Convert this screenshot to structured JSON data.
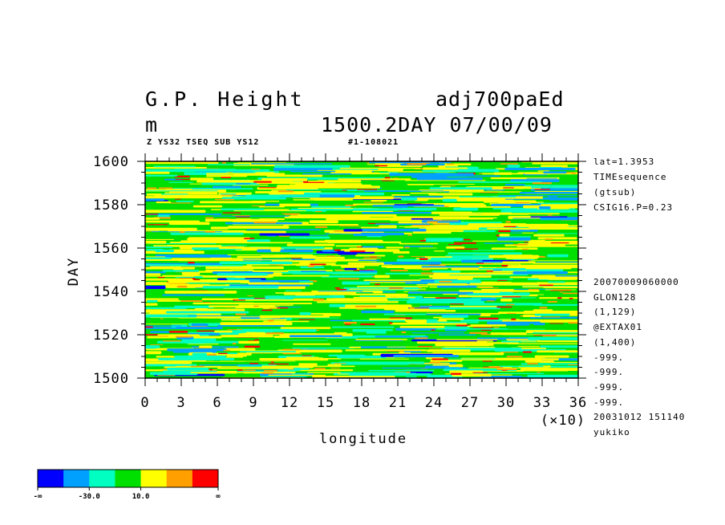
{
  "header": {
    "title_left_1": "G.P. Height",
    "title_right_1": "adj700paEd",
    "title_left_2": "m",
    "title_right_2": "1500.2DAY 07/00/09",
    "subtitle_left": "Z YS32 TSEQ SUB YS12",
    "subtitle_right": "#1-108021"
  },
  "side_info": {
    "top": [
      "lat=1.3953",
      "TIMEsequence",
      "(gtsub)",
      "CSIG16.P=0.23"
    ],
    "bottom": [
      "20070009060000",
      "GLON128",
      "(1,129)",
      "@EXTAX01",
      "(1,400)",
      "-999.",
      "-999.",
      "-999.",
      "-999.",
      "20031012 151140",
      "yukiko"
    ]
  },
  "colorbar": {
    "colors": [
      "#0000ff",
      "#00a0ff",
      "#00ffc0",
      "#00e000",
      "#ffff00",
      "#ffa000",
      "#ff0000"
    ],
    "labels": [
      "-∞",
      "-30.0",
      "10.0",
      "∞"
    ]
  },
  "chart_data": {
    "type": "heatmap",
    "xlabel": "longitude",
    "ylabel": "DAY",
    "x_scale_label": "(×10)",
    "xlim": [
      0,
      36
    ],
    "ylim": [
      1500,
      1600
    ],
    "x_ticks": [
      0,
      3,
      6,
      9,
      12,
      15,
      18,
      21,
      24,
      27,
      30,
      33,
      36
    ],
    "y_ticks": [
      1500,
      1520,
      1540,
      1560,
      1580,
      1600
    ],
    "x_tick_labels": [
      "0",
      "3",
      "6",
      "9",
      "12",
      "15",
      "18",
      "21",
      "24",
      "27",
      "30",
      "33",
      "36"
    ],
    "y_tick_labels": [
      "1500",
      "1520",
      "1540",
      "1560",
      "1580",
      "1600"
    ],
    "dominant_color": "#00e000",
    "description": "Time-longitude section of geopotential height anomaly"
  }
}
